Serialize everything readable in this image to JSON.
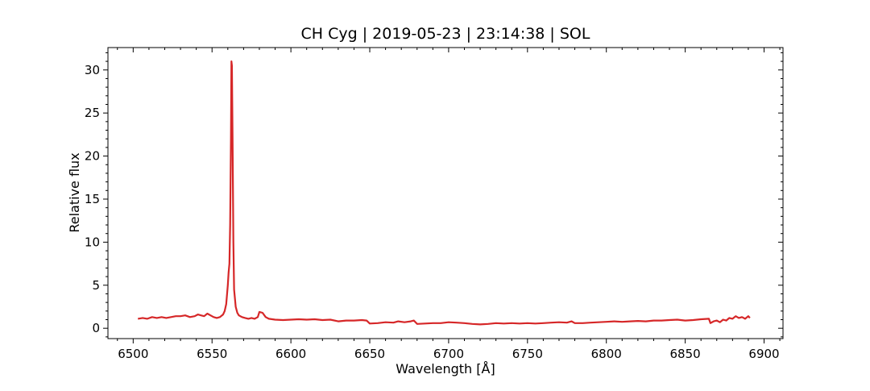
{
  "chart_data": {
    "type": "line",
    "title": "CH Cyg | 2019-05-23 | 23:14:38 | SOL",
    "xlabel": "Wavelength [Å]",
    "ylabel": "Relative flux",
    "xlim": [
      6484,
      6912
    ],
    "ylim": [
      -1.2,
      32.6
    ],
    "xticks": [
      6500,
      6550,
      6600,
      6650,
      6700,
      6750,
      6800,
      6850,
      6900
    ],
    "yticks": [
      0,
      5,
      10,
      15,
      20,
      25,
      30
    ],
    "grid": false,
    "line_color": "#d62728",
    "series": [
      {
        "x": [
          6503,
          6506,
          6509,
          6512,
          6515,
          6518,
          6521,
          6524,
          6527,
          6530,
          6533,
          6536,
          6539,
          6541,
          6543,
          6545,
          6547,
          6549,
          6551,
          6553,
          6555,
          6557,
          6558,
          6559,
          6560,
          6560.5,
          6561,
          6561.5,
          6562,
          6562.3,
          6562.6,
          6563,
          6563.5,
          6564,
          6565,
          6566,
          6567,
          6569,
          6571,
          6573,
          6575,
          6577,
          6579,
          6580,
          6582,
          6584,
          6586,
          6590,
          6595,
          6600,
          6605,
          6610,
          6615,
          6620,
          6625,
          6630,
          6635,
          6640,
          6645,
          6648,
          6650,
          6655,
          6660,
          6665,
          6668,
          6672,
          6676,
          6678,
          6680,
          6685,
          6690,
          6695,
          6700,
          6705,
          6710,
          6715,
          6720,
          6725,
          6730,
          6735,
          6740,
          6745,
          6750,
          6755,
          6760,
          6765,
          6770,
          6775,
          6778,
          6780,
          6785,
          6790,
          6795,
          6800,
          6805,
          6810,
          6815,
          6820,
          6825,
          6830,
          6835,
          6840,
          6845,
          6850,
          6855,
          6860,
          6865,
          6866,
          6868,
          6870,
          6872,
          6874,
          6876,
          6878,
          6880,
          6882,
          6884,
          6886,
          6888,
          6890,
          6891
        ],
        "y": [
          1.1,
          1.2,
          1.1,
          1.3,
          1.2,
          1.3,
          1.2,
          1.3,
          1.4,
          1.4,
          1.5,
          1.3,
          1.4,
          1.6,
          1.5,
          1.4,
          1.7,
          1.5,
          1.3,
          1.2,
          1.3,
          1.6,
          2.0,
          2.8,
          5.0,
          6.5,
          7.5,
          12.0,
          22.0,
          31.0,
          30.5,
          22.0,
          10.0,
          4.5,
          2.5,
          1.8,
          1.5,
          1.3,
          1.2,
          1.1,
          1.2,
          1.1,
          1.3,
          1.9,
          1.8,
          1.3,
          1.1,
          1.0,
          0.95,
          1.0,
          1.05,
          1.0,
          1.05,
          0.95,
          1.0,
          0.8,
          0.9,
          0.9,
          0.95,
          0.9,
          0.55,
          0.6,
          0.7,
          0.65,
          0.8,
          0.7,
          0.8,
          0.9,
          0.5,
          0.55,
          0.6,
          0.6,
          0.7,
          0.65,
          0.6,
          0.5,
          0.45,
          0.5,
          0.6,
          0.55,
          0.6,
          0.55,
          0.6,
          0.55,
          0.6,
          0.65,
          0.7,
          0.65,
          0.8,
          0.6,
          0.6,
          0.65,
          0.7,
          0.75,
          0.8,
          0.75,
          0.8,
          0.85,
          0.8,
          0.9,
          0.9,
          0.95,
          1.0,
          0.9,
          0.95,
          1.05,
          1.1,
          0.6,
          0.8,
          0.9,
          0.7,
          1.0,
          0.9,
          1.2,
          1.1,
          1.4,
          1.2,
          1.3,
          1.1,
          1.4,
          1.2
        ]
      }
    ]
  }
}
